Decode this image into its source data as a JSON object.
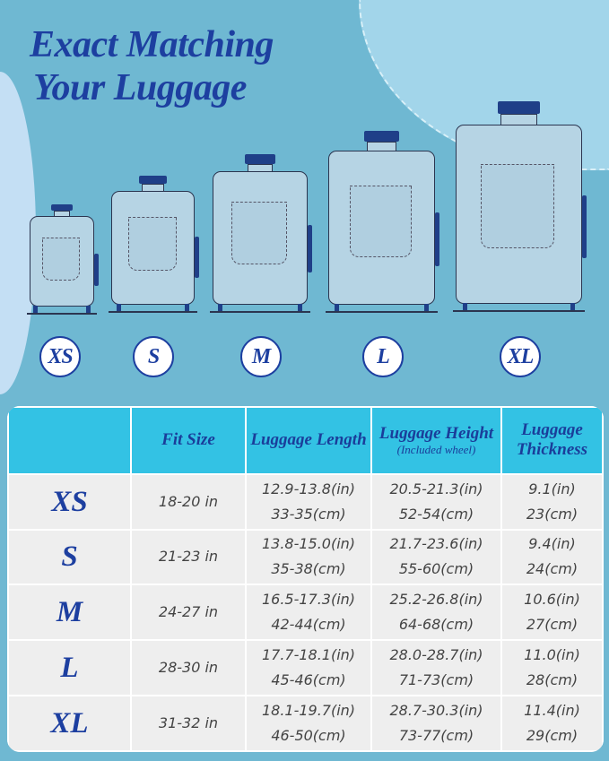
{
  "title": {
    "line1": "Exact Matching",
    "line2": "Your Luggage"
  },
  "sizes": [
    "XS",
    "S",
    "M",
    "L",
    "XL"
  ],
  "table": {
    "headers": {
      "blank": "",
      "fit": "Fit Size",
      "length": "Luggage Length",
      "height": "Luggage Height",
      "height_note": "(Included wheel)",
      "thickness": "Luggage Thickness"
    },
    "rows": [
      {
        "size": "XS",
        "fit": "18-20 in",
        "length_in": "12.9-13.8(in)",
        "length_cm": "33-35(cm)",
        "height_in": "20.5-21.3(in)",
        "height_cm": "52-54(cm)",
        "thick_in": "9.1(in)",
        "thick_cm": "23(cm)"
      },
      {
        "size": "S",
        "fit": "21-23 in",
        "length_in": "13.8-15.0(in)",
        "length_cm": "35-38(cm)",
        "height_in": "21.7-23.6(in)",
        "height_cm": "55-60(cm)",
        "thick_in": "9.4(in)",
        "thick_cm": "24(cm)"
      },
      {
        "size": "M",
        "fit": "24-27 in",
        "length_in": "16.5-17.3(in)",
        "length_cm": "42-44(cm)",
        "height_in": "25.2-26.8(in)",
        "height_cm": "64-68(cm)",
        "thick_in": "10.6(in)",
        "thick_cm": "27(cm)"
      },
      {
        "size": "L",
        "fit": "28-30 in",
        "length_in": "17.7-18.1(in)",
        "length_cm": "45-46(cm)",
        "height_in": "28.0-28.7(in)",
        "height_cm": "71-73(cm)",
        "thick_in": "11.0(in)",
        "thick_cm": "28(cm)"
      },
      {
        "size": "XL",
        "fit": "31-32 in",
        "length_in": "18.1-19.7(in)",
        "length_cm": "46-50(cm)",
        "height_in": "28.7-30.3(in)",
        "height_cm": "73-77(cm)",
        "thick_in": "11.4(in)",
        "thick_cm": "29(cm)"
      }
    ]
  },
  "colors": {
    "background": "#6fb8d2",
    "accent": "#1d3fa0",
    "header": "#33c2e4"
  }
}
